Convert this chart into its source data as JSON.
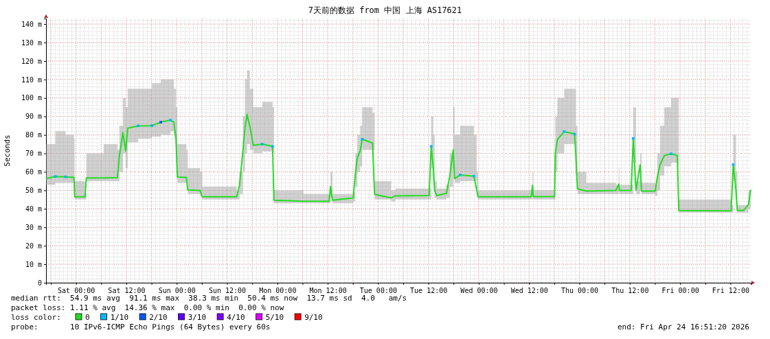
{
  "chart_data": {
    "type": "line",
    "title": "7天前的数据 from 中国 上海 AS17621",
    "ylabel": "Seconds",
    "legend_title": "loss color:",
    "legend": "bottom",
    "grid": true,
    "xlim": [
      "2026-04-17T16:51",
      "2026-04-24T16:51"
    ],
    "xticks": [
      {
        "value": "2026-04-17T18:00",
        "label": null
      },
      {
        "value": "2026-04-18T00:00",
        "label": "Sat 00:00"
      },
      {
        "value": "2026-04-18T06:00",
        "label": null
      },
      {
        "value": "2026-04-18T12:00",
        "label": "Sat 12:00"
      },
      {
        "value": "2026-04-18T18:00",
        "label": null
      },
      {
        "value": "2026-04-19T00:00",
        "label": "Sun 00:00"
      },
      {
        "value": "2026-04-19T06:00",
        "label": null
      },
      {
        "value": "2026-04-19T12:00",
        "label": "Sun 12:00"
      },
      {
        "value": "2026-04-19T18:00",
        "label": null
      },
      {
        "value": "2026-04-20T00:00",
        "label": "Mon 00:00"
      },
      {
        "value": "2026-04-20T06:00",
        "label": null
      },
      {
        "value": "2026-04-20T12:00",
        "label": "Mon 12:00"
      },
      {
        "value": "2026-04-20T18:00",
        "label": null
      },
      {
        "value": "2026-04-21T00:00",
        "label": "Tue 00:00"
      },
      {
        "value": "2026-04-21T06:00",
        "label": null
      },
      {
        "value": "2026-04-21T12:00",
        "label": "Tue 12:00"
      },
      {
        "value": "2026-04-21T18:00",
        "label": null
      },
      {
        "value": "2026-04-22T00:00",
        "label": "Wed 00:00"
      },
      {
        "value": "2026-04-22T06:00",
        "label": null
      },
      {
        "value": "2026-04-22T12:00",
        "label": "Wed 12:00"
      },
      {
        "value": "2026-04-22T18:00",
        "label": null
      },
      {
        "value": "2026-04-23T00:00",
        "label": "Thu 00:00"
      },
      {
        "value": "2026-04-23T06:00",
        "label": null
      },
      {
        "value": "2026-04-23T12:00",
        "label": "Thu 12:00"
      },
      {
        "value": "2026-04-23T18:00",
        "label": null
      },
      {
        "value": "2026-04-24T00:00",
        "label": "Fri 00:00"
      },
      {
        "value": "2026-04-24T06:00",
        "label": null
      },
      {
        "value": "2026-04-24T12:00",
        "label": "Fri 12:00"
      }
    ],
    "ylim": [
      0,
      143
    ],
    "yticks": [
      0,
      {
        "value": 10,
        "label": "10 m"
      },
      {
        "value": 20,
        "label": "20 m"
      },
      {
        "value": 30,
        "label": "30 m"
      },
      {
        "value": 40,
        "label": "40 m"
      },
      {
        "value": 50,
        "label": "50 m"
      },
      {
        "value": 60,
        "label": "60 m"
      },
      {
        "value": 70,
        "label": "70 m"
      },
      {
        "value": 80,
        "label": "80 m"
      },
      {
        "value": 90,
        "label": "90 m"
      },
      {
        "value": 100,
        "label": "100 m"
      },
      {
        "value": 110,
        "label": "110 m"
      },
      {
        "value": 120,
        "label": "120 m"
      },
      {
        "value": 130,
        "label": "130 m"
      },
      {
        "value": 140,
        "label": "140 m"
      }
    ],
    "series": [
      {
        "name": "0",
        "color": "#22dd22",
        "line_style": "solid",
        "x": [
          "2026-04-17T16:51",
          "2026-04-17T19:04",
          "2026-04-17T21:32",
          "2026-04-17T23:31",
          "2026-04-17T23:40",
          "2026-04-18T02:08",
          "2026-04-18T02:28",
          "2026-04-18T06:35",
          "2026-04-18T09:52",
          "2026-04-18T10:21",
          "2026-04-18T11:11",
          "2026-04-18T11:50",
          "2026-04-18T12:20",
          "2026-04-18T14:48",
          "2026-04-18T18:05",
          "2026-04-18T20:13",
          "2026-04-18T22:31",
          "2026-04-18T23:20",
          "2026-04-18T23:50",
          "2026-04-19T00:10",
          "2026-04-19T02:18",
          "2026-04-19T02:38",
          "2026-04-19T05:35",
          "2026-04-19T06:05",
          "2026-04-19T14:18",
          "2026-04-19T14:58",
          "2026-04-19T15:47",
          "2026-04-19T16:17",
          "2026-04-19T16:46",
          "2026-04-19T17:26",
          "2026-04-19T18:15",
          "2026-04-19T20:23",
          "2026-04-19T22:51",
          "2026-04-19T23:11",
          "2026-04-20T06:15",
          "2026-04-20T12:20",
          "2026-04-20T12:40",
          "2026-04-20T13:09",
          "2026-04-20T18:05",
          "2026-04-20T18:35",
          "2026-04-20T19:04",
          "2026-04-20T19:44",
          "2026-04-20T20:13",
          "2026-04-20T22:41",
          "2026-04-20T23:11",
          "2026-04-21T03:08",
          "2026-04-21T04:07",
          "2026-04-21T12:10",
          "2026-04-21T12:40",
          "2026-04-21T13:09",
          "2026-04-21T13:29",
          "2026-04-21T13:59",
          "2026-04-21T16:17",
          "2026-04-21T17:06",
          "2026-04-21T17:55",
          "2026-04-21T18:15",
          "2026-04-21T19:34",
          "2026-04-21T22:51",
          "2026-04-21T23:31",
          "2026-04-21T23:50",
          "2026-04-22T12:30",
          "2026-04-22T12:50",
          "2026-04-22T13:00",
          "2026-04-22T18:05",
          "2026-04-22T18:15",
          "2026-04-22T18:45",
          "2026-04-22T20:23",
          "2026-04-22T22:51",
          "2026-04-22T23:11",
          "2026-04-22T23:31",
          "2026-04-23T01:39",
          "2026-04-23T08:43",
          "2026-04-23T09:23",
          "2026-04-23T09:32",
          "2026-04-23T12:20",
          "2026-04-23T12:50",
          "2026-04-23T13:29",
          "2026-04-23T14:29",
          "2026-04-23T14:48",
          "2026-04-23T18:05",
          "2026-04-23T18:35",
          "2026-04-23T19:14",
          "2026-04-23T20:14",
          "2026-04-23T21:52",
          "2026-04-23T23:21",
          "2026-04-23T23:41",
          "2026-04-24T12:10",
          "2026-04-24T12:40",
          "2026-04-24T13:19",
          "2026-04-24T13:39",
          "2026-04-24T15:08",
          "2026-04-24T16:17",
          "2026-04-24T16:51"
        ],
        "values": [
          56.4,
          57.5,
          57.3,
          57,
          46.5,
          46.5,
          56.7,
          56.7,
          56.9,
          68.8,
          81.3,
          71.3,
          83.7,
          84.9,
          85,
          86.9,
          88,
          86.9,
          77.6,
          57.2,
          57,
          50.2,
          50,
          46.5,
          46.5,
          52.7,
          71.3,
          83.7,
          91.1,
          84.9,
          74.4,
          75,
          73.8,
          44.7,
          44.1,
          44.1,
          52.1,
          44.7,
          45.9,
          58.9,
          67.6,
          71.3,
          77.7,
          75.6,
          47.8,
          45.9,
          47,
          47.2,
          73.8,
          62.8,
          49.8,
          47.2,
          48.4,
          57.7,
          71.9,
          56.4,
          58.3,
          57.7,
          50.2,
          46.5,
          46.5,
          52.7,
          46.6,
          46.6,
          70,
          77.5,
          81.8,
          80.5,
          67.6,
          50.9,
          49.6,
          50,
          53.4,
          50,
          50,
          78.1,
          50,
          63.9,
          49.6,
          49.6,
          57.2,
          63.9,
          68.8,
          69.8,
          68.8,
          39.1,
          38.9,
          63.9,
          50,
          39.1,
          39.1,
          42.2,
          50.4
        ],
        "lower": [
          53,
          54,
          54,
          54,
          45,
          45,
          55,
          55,
          55,
          60,
          70,
          62,
          76,
          78,
          79,
          80,
          82,
          80,
          65,
          54,
          54,
          48,
          47,
          45,
          45,
          48,
          60,
          70,
          75,
          72,
          70,
          71,
          70,
          43,
          43,
          43,
          46,
          43,
          44,
          52,
          60,
          63,
          72,
          72,
          45,
          44,
          45,
          45,
          62,
          55,
          46,
          45,
          46,
          52,
          62,
          54,
          55,
          55,
          47,
          45,
          45,
          47,
          45,
          45,
          60,
          70,
          75,
          74,
          58,
          48,
          48,
          48,
          49,
          48,
          48,
          65,
          48,
          50,
          48,
          47,
          50,
          58,
          63,
          65,
          64,
          38,
          38,
          55,
          45,
          38,
          38,
          40,
          45
        ],
        "upper": [
          75,
          82,
          80,
          78,
          55,
          48,
          70,
          75,
          72,
          85,
          100,
          95,
          105,
          105,
          108,
          110,
          110,
          105,
          95,
          75,
          72,
          62,
          60,
          52,
          50,
          60,
          90,
          110,
          115,
          105,
          95,
          98,
          95,
          50,
          48,
          48,
          60,
          48,
          49,
          70,
          80,
          85,
          95,
          92,
          55,
          50,
          51,
          51,
          90,
          80,
          55,
          51,
          53,
          70,
          95,
          80,
          85,
          80,
          60,
          50,
          50,
          60,
          50,
          50,
          90,
          100,
          105,
          105,
          85,
          60,
          54,
          53,
          62,
          53,
          53,
          95,
          55,
          70,
          54,
          53,
          70,
          85,
          95,
          100,
          100,
          45,
          42,
          80,
          60,
          42,
          42,
          50,
          55
        ]
      },
      {
        "name": "1/10",
        "type": "scatter",
        "marker": "square",
        "color": "#00b8ff",
        "x": [
          "2026-04-17T19:04",
          "2026-04-17T21:32",
          "2026-04-18T14:48",
          "2026-04-18T18:05",
          "2026-04-18T22:31",
          "2026-04-19T20:23",
          "2026-04-19T22:51",
          "2026-04-20T20:13",
          "2026-04-21T12:40",
          "2026-04-21T19:34",
          "2026-04-21T22:51",
          "2026-04-22T20:23",
          "2026-04-22T22:51",
          "2026-04-23T12:50",
          "2026-04-23T21:52",
          "2026-04-24T12:40"
        ],
        "values": [
          57.5,
          57.3,
          84.9,
          85,
          88,
          75,
          73.8,
          77.7,
          73.8,
          58.3,
          57.7,
          81.8,
          80.5,
          78.1,
          69.8,
          63.9
        ]
      },
      {
        "name": "2/10",
        "type": "scatter",
        "marker": "square",
        "color": "#0059ff",
        "x": [
          "2026-04-18T20:13"
        ],
        "values": [
          86.9
        ]
      },
      {
        "name": "3/10",
        "type": "scatter",
        "marker": "square",
        "color": "#5e00ff"
      },
      {
        "name": "4/10",
        "type": "scatter",
        "marker": "square",
        "color": "#7e00ff"
      },
      {
        "name": "5/10",
        "type": "scatter",
        "marker": "square",
        "color": "#dd00ff"
      },
      {
        "name": "9/10",
        "type": "scatter",
        "marker": "square",
        "color": "#ff0000"
      }
    ],
    "annotations": [
      "median rtt:  54.9 ms avg  91.1 ms max  38.3 ms min  50.4 ms now  13.7 ms sd  4.0   am/s",
      "packet loss: 1.11 % avg  14.36 % max  0.00 % min  0.00 % now",
      "probe:       10 IPv6-ICMP Echo Pings (64 Bytes) every 60s",
      "end: Fri Apr 24 16:51:20 2026"
    ]
  }
}
